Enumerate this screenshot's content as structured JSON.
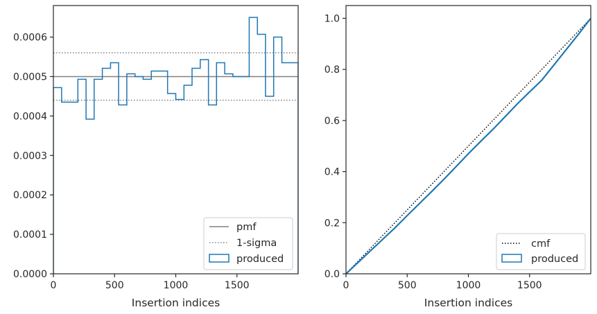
{
  "chart_data": [
    {
      "type": "histogram",
      "xlabel": "Insertion indices",
      "ylabel": "",
      "xlim": [
        0,
        2000
      ],
      "ylim": [
        0,
        0.00068
      ],
      "xticks": [
        0,
        500,
        1000,
        1500
      ],
      "yticks": [
        0,
        0.0001,
        0.0002,
        0.0003,
        0.0004,
        0.0005,
        0.0006
      ],
      "ytick_labels": [
        "0.0000",
        "0.0001",
        "0.0002",
        "0.0003",
        "0.0004",
        "0.0005",
        "0.0006"
      ],
      "legend_placement": "lower right",
      "reference_lines": [
        {
          "name": "pmf",
          "y": 0.0005,
          "style": "solid",
          "color": "#808080"
        },
        {
          "name": "1-sigma",
          "y": [
            0.00044,
            0.00056
          ],
          "style": "dotted",
          "color": "#808080"
        }
      ],
      "series": [
        {
          "name": "produced",
          "color": "#1f77b4",
          "bin_edges": [
            0,
            67,
            133,
            200,
            267,
            333,
            400,
            467,
            533,
            600,
            667,
            733,
            800,
            867,
            933,
            1000,
            1067,
            1133,
            1200,
            1267,
            1333,
            1400,
            1467,
            1533,
            1600,
            1667,
            1733,
            1800,
            1867,
            1933,
            2000
          ],
          "values": [
            0.000472,
            0.000435,
            0.000435,
            0.000493,
            0.000392,
            0.000493,
            0.000521,
            0.000535,
            0.000428,
            0.000507,
            0.0005,
            0.000493,
            0.000514,
            0.000514,
            0.000457,
            0.000442,
            0.000478,
            0.000521,
            0.000543,
            0.000428,
            0.000535,
            0.000507,
            0.0005,
            0.0005,
            0.00065,
            0.000607,
            0.00045,
            0.0006,
            0.000535,
            0.000535
          ]
        }
      ]
    },
    {
      "type": "line",
      "xlabel": "Insertion indices",
      "ylabel": "",
      "xlim": [
        0,
        2000
      ],
      "ylim": [
        0,
        1.05
      ],
      "xticks": [
        0,
        500,
        1000,
        1500
      ],
      "yticks": [
        0,
        0.2,
        0.4,
        0.6,
        0.8,
        1.0
      ],
      "ytick_labels": [
        "0.0",
        "0.2",
        "0.4",
        "0.6",
        "0.8",
        "1.0"
      ],
      "legend_placement": "lower right",
      "series": [
        {
          "name": "cmf",
          "style": "dotted",
          "color": "#000000",
          "x": [
            0,
            2000
          ],
          "values": [
            0,
            1.0
          ]
        },
        {
          "name": "produced",
          "style": "solid",
          "color": "#1f77b4",
          "x": [
            0,
            100,
            200,
            300,
            400,
            500,
            600,
            700,
            800,
            900,
            1000,
            1100,
            1200,
            1300,
            1400,
            1500,
            1600,
            1700,
            1800,
            1900,
            2000
          ],
          "values": [
            0,
            0.045,
            0.09,
            0.135,
            0.18,
            0.228,
            0.275,
            0.322,
            0.37,
            0.42,
            0.47,
            0.518,
            0.565,
            0.615,
            0.665,
            0.712,
            0.758,
            0.818,
            0.878,
            0.938,
            1.0
          ]
        }
      ]
    }
  ]
}
